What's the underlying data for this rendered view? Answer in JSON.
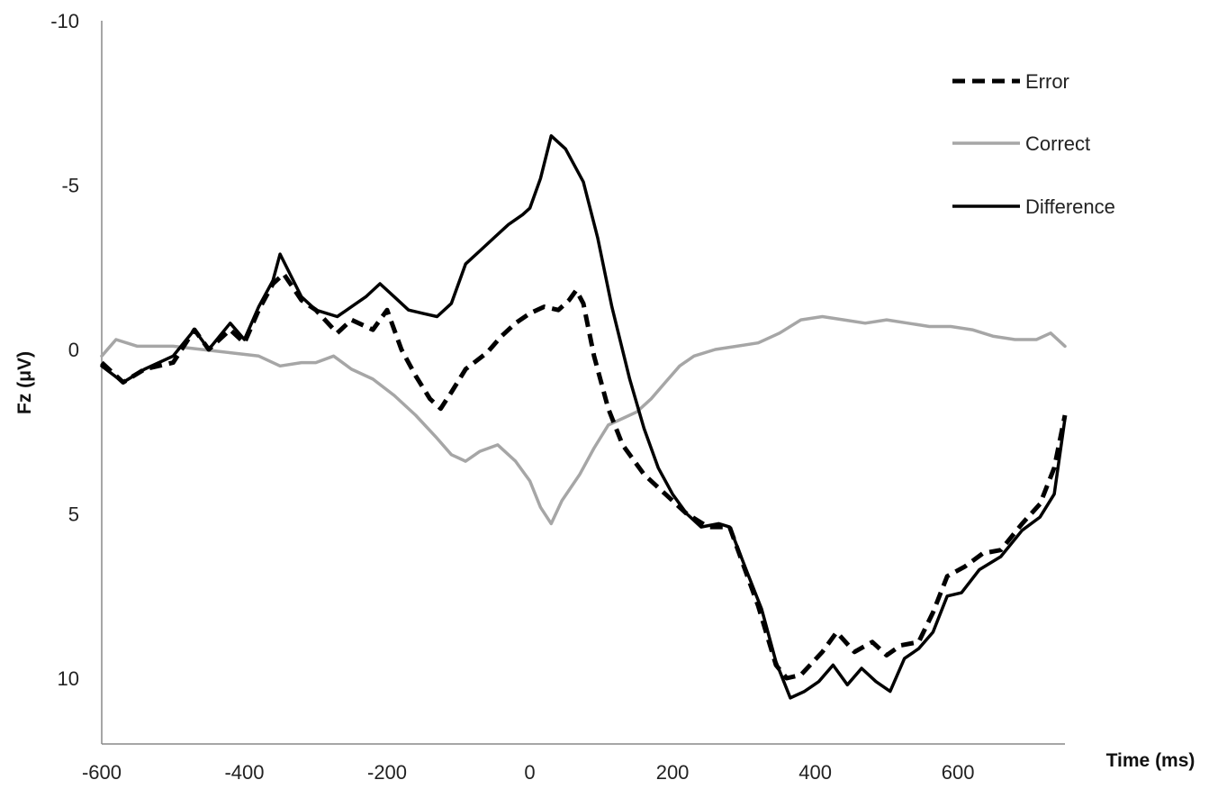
{
  "chart_data": {
    "type": "line",
    "title": "",
    "xlabel": "Time (ms)",
    "ylabel": "Fz (μV)",
    "y_reversed": true,
    "xlim": [
      -600,
      750
    ],
    "ylim": [
      -10,
      12
    ],
    "x_ticks": [
      -600,
      -400,
      -200,
      0,
      200,
      400,
      600
    ],
    "y_ticks": [
      -10,
      -5,
      0,
      5,
      10
    ],
    "grid": false,
    "legend_position": "top-right",
    "series": [
      {
        "name": "Error",
        "style": "dashed",
        "color": "#000000",
        "points": [
          [
            -600,
            0.4
          ],
          [
            -570,
            1.0
          ],
          [
            -540,
            0.6
          ],
          [
            -500,
            0.4
          ],
          [
            -470,
            -0.6
          ],
          [
            -450,
            0.0
          ],
          [
            -420,
            -0.6
          ],
          [
            -400,
            -0.2
          ],
          [
            -380,
            -1.2
          ],
          [
            -360,
            -2.0
          ],
          [
            -345,
            -2.3
          ],
          [
            -320,
            -1.5
          ],
          [
            -300,
            -1.2
          ],
          [
            -270,
            -0.5
          ],
          [
            -250,
            -0.9
          ],
          [
            -220,
            -0.6
          ],
          [
            -200,
            -1.2
          ],
          [
            -180,
            0.0
          ],
          [
            -160,
            0.8
          ],
          [
            -140,
            1.5
          ],
          [
            -125,
            1.8
          ],
          [
            -110,
            1.3
          ],
          [
            -90,
            0.6
          ],
          [
            -60,
            0.1
          ],
          [
            -40,
            -0.4
          ],
          [
            -20,
            -0.8
          ],
          [
            0,
            -1.1
          ],
          [
            20,
            -1.3
          ],
          [
            40,
            -1.2
          ],
          [
            55,
            -1.5
          ],
          [
            65,
            -1.8
          ],
          [
            75,
            -1.4
          ],
          [
            90,
            0.2
          ],
          [
            110,
            1.8
          ],
          [
            130,
            2.9
          ],
          [
            160,
            3.8
          ],
          [
            190,
            4.4
          ],
          [
            220,
            5.0
          ],
          [
            250,
            5.4
          ],
          [
            280,
            5.4
          ],
          [
            300,
            6.6
          ],
          [
            320,
            7.8
          ],
          [
            345,
            9.6
          ],
          [
            360,
            10.0
          ],
          [
            380,
            9.9
          ],
          [
            410,
            9.2
          ],
          [
            430,
            8.6
          ],
          [
            455,
            9.2
          ],
          [
            480,
            8.9
          ],
          [
            500,
            9.3
          ],
          [
            520,
            9.0
          ],
          [
            545,
            8.9
          ],
          [
            565,
            8.0
          ],
          [
            585,
            6.9
          ],
          [
            610,
            6.6
          ],
          [
            635,
            6.2
          ],
          [
            660,
            6.1
          ],
          [
            690,
            5.3
          ],
          [
            715,
            4.7
          ],
          [
            735,
            3.6
          ],
          [
            750,
            2.0
          ]
        ]
      },
      {
        "name": "Correct",
        "style": "solid",
        "color": "#a6a6a6",
        "points": [
          [
            -600,
            0.2
          ],
          [
            -580,
            -0.3
          ],
          [
            -550,
            -0.1
          ],
          [
            -520,
            -0.1
          ],
          [
            -500,
            -0.1
          ],
          [
            -460,
            0.0
          ],
          [
            -420,
            0.1
          ],
          [
            -380,
            0.2
          ],
          [
            -350,
            0.5
          ],
          [
            -320,
            0.4
          ],
          [
            -300,
            0.4
          ],
          [
            -275,
            0.2
          ],
          [
            -250,
            0.6
          ],
          [
            -220,
            0.9
          ],
          [
            -190,
            1.4
          ],
          [
            -160,
            2.0
          ],
          [
            -130,
            2.7
          ],
          [
            -110,
            3.2
          ],
          [
            -90,
            3.4
          ],
          [
            -70,
            3.1
          ],
          [
            -45,
            2.9
          ],
          [
            -20,
            3.4
          ],
          [
            0,
            4.0
          ],
          [
            15,
            4.8
          ],
          [
            30,
            5.3
          ],
          [
            45,
            4.6
          ],
          [
            70,
            3.8
          ],
          [
            90,
            3.0
          ],
          [
            110,
            2.3
          ],
          [
            130,
            2.1
          ],
          [
            150,
            1.9
          ],
          [
            170,
            1.5
          ],
          [
            190,
            1.0
          ],
          [
            210,
            0.5
          ],
          [
            230,
            0.2
          ],
          [
            260,
            0.0
          ],
          [
            290,
            -0.1
          ],
          [
            320,
            -0.2
          ],
          [
            350,
            -0.5
          ],
          [
            380,
            -0.9
          ],
          [
            410,
            -1.0
          ],
          [
            440,
            -0.9
          ],
          [
            470,
            -0.8
          ],
          [
            500,
            -0.9
          ],
          [
            530,
            -0.8
          ],
          [
            560,
            -0.7
          ],
          [
            590,
            -0.7
          ],
          [
            620,
            -0.6
          ],
          [
            650,
            -0.4
          ],
          [
            680,
            -0.3
          ],
          [
            710,
            -0.3
          ],
          [
            730,
            -0.5
          ],
          [
            750,
            -0.1
          ]
        ]
      },
      {
        "name": "Difference",
        "style": "solid",
        "color": "#000000",
        "points": [
          [
            -600,
            0.5
          ],
          [
            -570,
            1.0
          ],
          [
            -540,
            0.6
          ],
          [
            -500,
            0.2
          ],
          [
            -470,
            -0.6
          ],
          [
            -450,
            0.0
          ],
          [
            -420,
            -0.8
          ],
          [
            -400,
            -0.3
          ],
          [
            -380,
            -1.3
          ],
          [
            -360,
            -2.1
          ],
          [
            -350,
            -2.9
          ],
          [
            -320,
            -1.6
          ],
          [
            -300,
            -1.2
          ],
          [
            -270,
            -1.0
          ],
          [
            -250,
            -1.3
          ],
          [
            -230,
            -1.6
          ],
          [
            -210,
            -2.0
          ],
          [
            -190,
            -1.6
          ],
          [
            -170,
            -1.2
          ],
          [
            -150,
            -1.1
          ],
          [
            -130,
            -1.0
          ],
          [
            -110,
            -1.4
          ],
          [
            -90,
            -2.6
          ],
          [
            -70,
            -3.0
          ],
          [
            -50,
            -3.4
          ],
          [
            -30,
            -3.8
          ],
          [
            -10,
            -4.1
          ],
          [
            0,
            -4.3
          ],
          [
            15,
            -5.2
          ],
          [
            30,
            -6.5
          ],
          [
            50,
            -6.1
          ],
          [
            75,
            -5.1
          ],
          [
            95,
            -3.4
          ],
          [
            115,
            -1.3
          ],
          [
            140,
            0.9
          ],
          [
            160,
            2.4
          ],
          [
            180,
            3.6
          ],
          [
            200,
            4.4
          ],
          [
            220,
            5.0
          ],
          [
            240,
            5.4
          ],
          [
            265,
            5.3
          ],
          [
            280,
            5.4
          ],
          [
            305,
            6.8
          ],
          [
            325,
            7.9
          ],
          [
            345,
            9.5
          ],
          [
            365,
            10.6
          ],
          [
            385,
            10.4
          ],
          [
            405,
            10.1
          ],
          [
            425,
            9.6
          ],
          [
            445,
            10.2
          ],
          [
            465,
            9.7
          ],
          [
            485,
            10.1
          ],
          [
            505,
            10.4
          ],
          [
            525,
            9.4
          ],
          [
            545,
            9.1
          ],
          [
            565,
            8.6
          ],
          [
            585,
            7.5
          ],
          [
            605,
            7.4
          ],
          [
            630,
            6.7
          ],
          [
            660,
            6.3
          ],
          [
            690,
            5.5
          ],
          [
            715,
            5.1
          ],
          [
            735,
            4.4
          ],
          [
            750,
            2.1
          ]
        ]
      }
    ]
  }
}
